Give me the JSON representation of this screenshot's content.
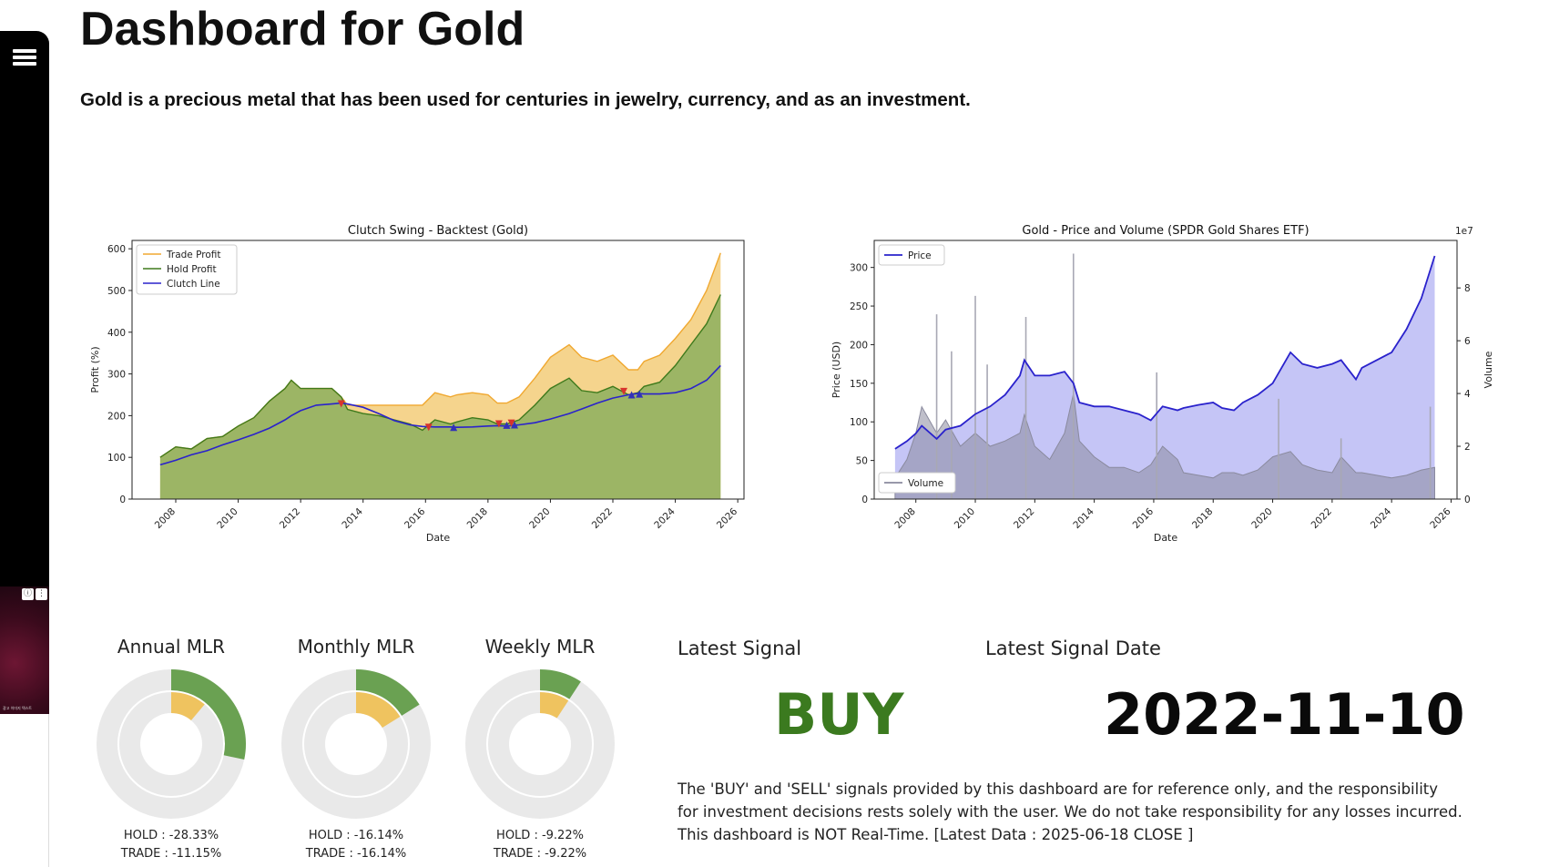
{
  "app": {
    "title": "Dashboard for Gold",
    "subtitle": "Gold is a precious metal that has been used for centuries in jewelry, currency, and as an investment."
  },
  "sidebar": {
    "menu_icon": "hamburger-menu-icon"
  },
  "ad": {
    "info_icon": "ⓘ",
    "more_icon": "⋮",
    "caption": "광고 이미지 텍스트"
  },
  "charts": {
    "backtest": {
      "type": "area",
      "title": "Clutch Swing - Backtest (Gold)",
      "xlabel": "Date",
      "ylabel": "Profit (%)",
      "xlim": [
        2006.6,
        2026.2
      ],
      "ylim": [
        0,
        620
      ],
      "xticks": [
        "2008",
        "2010",
        "2012",
        "2014",
        "2016",
        "2018",
        "2020",
        "2022",
        "2024",
        "2026"
      ],
      "yticks": [
        "0",
        "100",
        "200",
        "300",
        "400",
        "500",
        "600"
      ],
      "legend": [
        "Trade Profit",
        "Hold Profit",
        "Clutch Line"
      ],
      "legend_position": "top-left",
      "colors": {
        "trade": "#f0a830",
        "hold": "#3e7a1c",
        "clutch": "#2a22cc",
        "hold_fill": "#9cb565",
        "trade_fill": "#f5d48d"
      },
      "x": [
        2007.5,
        2008.0,
        2008.5,
        2009.0,
        2009.5,
        2010.0,
        2010.5,
        2011.0,
        2011.5,
        2011.7,
        2012.0,
        2012.5,
        2013.0,
        2013.3,
        2013.5,
        2014.0,
        2014.5,
        2015.0,
        2015.5,
        2015.9,
        2016.3,
        2016.8,
        2017.0,
        2017.5,
        2018.0,
        2018.3,
        2018.6,
        2019.0,
        2019.5,
        2020.0,
        2020.6,
        2021.0,
        2021.5,
        2022.0,
        2022.5,
        2022.8,
        2023.0,
        2023.5,
        2024.0,
        2024.5,
        2025.0,
        2025.45
      ],
      "hold": [
        100,
        125,
        120,
        145,
        150,
        175,
        195,
        235,
        265,
        285,
        265,
        265,
        265,
        245,
        215,
        205,
        200,
        190,
        180,
        165,
        190,
        180,
        185,
        195,
        190,
        180,
        180,
        190,
        225,
        265,
        290,
        260,
        255,
        270,
        250,
        255,
        270,
        280,
        320,
        370,
        420,
        490
      ],
      "trade": [
        100,
        125,
        120,
        145,
        150,
        175,
        195,
        235,
        265,
        285,
        265,
        265,
        265,
        245,
        225,
        225,
        225,
        225,
        225,
        225,
        255,
        245,
        250,
        255,
        250,
        230,
        230,
        245,
        290,
        340,
        370,
        340,
        330,
        345,
        310,
        310,
        330,
        345,
        385,
        430,
        500,
        590
      ],
      "clutch": [
        82,
        93,
        106,
        116,
        130,
        142,
        155,
        170,
        190,
        200,
        212,
        225,
        228,
        230,
        228,
        220,
        205,
        188,
        178,
        174,
        173,
        173,
        172,
        173,
        175,
        176,
        175,
        178,
        183,
        192,
        205,
        216,
        230,
        242,
        250,
        253,
        252,
        252,
        255,
        265,
        285,
        320
      ],
      "buy_markers": [
        [
          2016.9,
          172
        ],
        [
          2018.6,
          177
        ],
        [
          2018.85,
          178
        ],
        [
          2022.6,
          250
        ],
        [
          2022.85,
          252
        ]
      ],
      "sell_markers": [
        [
          2013.3,
          228
        ],
        [
          2016.1,
          172
        ],
        [
          2018.35,
          180
        ],
        [
          2018.75,
          182
        ],
        [
          2022.35,
          258
        ]
      ]
    },
    "price_volume": {
      "type": "line",
      "title": "Gold - Price and Volume (SPDR Gold Shares ETF)",
      "xlabel": "Date",
      "ylabel": "Price (USD)",
      "ylabel2": "Volume",
      "scale_label": "1e7",
      "xlim": [
        2006.6,
        2026.2
      ],
      "ylim": [
        0,
        335
      ],
      "y2lim": [
        0,
        9.8
      ],
      "xticks": [
        "2008",
        "2010",
        "2012",
        "2014",
        "2016",
        "2018",
        "2020",
        "2022",
        "2024",
        "2026"
      ],
      "yticks": [
        "0",
        "50",
        "100",
        "150",
        "200",
        "250",
        "300"
      ],
      "y2ticks": [
        "0",
        "2",
        "4",
        "6",
        "8"
      ],
      "legend_price": "Price",
      "legend_volume": "Volume",
      "colors": {
        "price": "#2a22cc",
        "price_fill": "#c5c5f6",
        "volume": "#8a8a9e"
      },
      "x": [
        2007.3,
        2007.7,
        2008.0,
        2008.2,
        2008.7,
        2009.0,
        2009.5,
        2010.0,
        2010.5,
        2011.0,
        2011.5,
        2011.65,
        2012.0,
        2012.5,
        2013.0,
        2013.3,
        2013.5,
        2014.0,
        2014.5,
        2015.0,
        2015.5,
        2015.9,
        2016.3,
        2016.8,
        2017.0,
        2017.5,
        2018.0,
        2018.3,
        2018.7,
        2019.0,
        2019.5,
        2020.0,
        2020.6,
        2021.0,
        2021.5,
        2022.0,
        2022.3,
        2022.8,
        2023.0,
        2023.5,
        2024.0,
        2024.5,
        2025.0,
        2025.45
      ],
      "price": [
        65,
        75,
        85,
        95,
        78,
        90,
        95,
        110,
        120,
        135,
        160,
        180,
        160,
        160,
        165,
        150,
        125,
        120,
        120,
        115,
        110,
        102,
        120,
        115,
        118,
        122,
        125,
        118,
        115,
        125,
        135,
        150,
        190,
        175,
        170,
        175,
        180,
        155,
        170,
        180,
        190,
        220,
        260,
        315
      ],
      "volume": [
        0.8,
        1.5,
        2.5,
        3.5,
        2.5,
        3.0,
        2.0,
        2.5,
        2.0,
        2.2,
        2.5,
        3.2,
        2.0,
        1.5,
        2.5,
        4.0,
        2.2,
        1.6,
        1.2,
        1.2,
        1.0,
        1.3,
        2.0,
        1.5,
        1.0,
        0.9,
        0.8,
        1.0,
        1.0,
        0.9,
        1.1,
        1.6,
        1.8,
        1.3,
        1.1,
        1.0,
        1.6,
        1.0,
        1.0,
        0.9,
        0.8,
        0.9,
        1.1,
        1.2
      ],
      "volume_spikes": [
        [
          2008.7,
          7.0
        ],
        [
          2009.2,
          5.6
        ],
        [
          2010.0,
          7.7
        ],
        [
          2010.4,
          5.1
        ],
        [
          2011.7,
          6.9
        ],
        [
          2013.3,
          9.3
        ],
        [
          2016.1,
          4.8
        ],
        [
          2020.2,
          3.8
        ],
        [
          2022.3,
          2.3
        ],
        [
          2025.3,
          3.5
        ]
      ]
    }
  },
  "gauges": [
    {
      "title": "Annual MLR",
      "hold_text": "HOLD  : -28.33%",
      "trade_text": "TRADE : -11.15%",
      "hold": -28.33,
      "trade": -11.15
    },
    {
      "title": "Monthly MLR",
      "hold_text": "HOLD  : -16.14%",
      "trade_text": "TRADE : -16.14%",
      "hold": -16.14,
      "trade": -16.14
    },
    {
      "title": "Weekly MLR",
      "hold_text": "HOLD  : -9.22%",
      "trade_text": "TRADE : -9.22%",
      "hold": -9.22,
      "trade": -9.22
    }
  ],
  "gauge_colors": {
    "outer": "#6aa152",
    "inner": "#efc35f",
    "track": "#e9e9e9"
  },
  "signal": {
    "label": "Latest Signal",
    "value": "BUY",
    "date_label": "Latest Signal Date",
    "date_value": "2022-11-10"
  },
  "disclaimer": {
    "line1": "The 'BUY' and 'SELL' signals provided by this dashboard are for reference only, and the responsibility",
    "line2": "for investment decisions rests solely with the user. We do not take responsibility for any losses incurred.",
    "line3": "This dashboard is NOT Real-Time. [Latest Data : 2025-06-18 CLOSE ]"
  }
}
